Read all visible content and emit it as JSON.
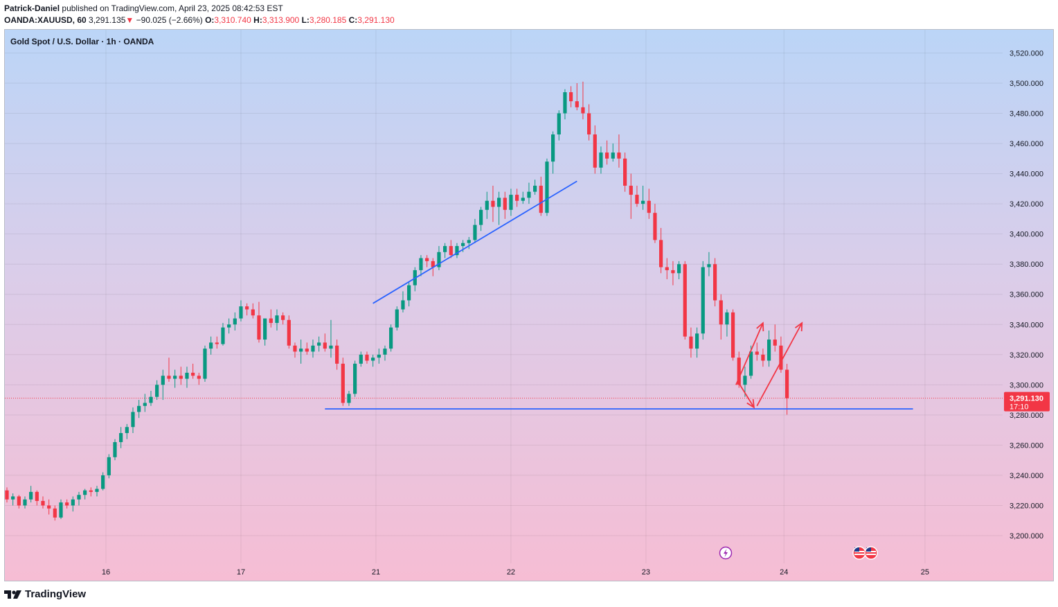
{
  "header": {
    "author": "Patrick-Daniel",
    "published": "published on TradingView.com, April 23, 2025 08:42:53 EST",
    "symbol": "OANDA:XAUUSD, 60",
    "last": "3,291.135",
    "change_arrow": "▼",
    "change": "−90.025 (−2.66%)",
    "o_label": "O:",
    "o": "3,310.740",
    "h_label": "H:",
    "h": "3,313.900",
    "l_label": "L:",
    "l": "3,280.185",
    "c_label": "C:",
    "c": "3,291.130"
  },
  "chart_title": "Gold Spot / U.S. Dollar · 1h · OANDA",
  "price_badge": {
    "price": "3,291.130",
    "countdown": "17:10"
  },
  "branding": {
    "name": "TradingView",
    "icon": "tradingview-logo-icon"
  },
  "colors": {
    "up": "#089981",
    "down": "#f23645",
    "line": "#2962ff",
    "arrow": "#f23645"
  },
  "icons": {
    "event_flash": "flash-event-icon",
    "flags": "us-flag-icon"
  },
  "chart_data": {
    "type": "candlestick",
    "title": "Gold Spot / U.S. Dollar · 1h · OANDA",
    "ylim": [
      3187,
      3530
    ],
    "yticks": [
      3200,
      3220,
      3240,
      3260,
      3280,
      3300,
      3320,
      3340,
      3360,
      3380,
      3400,
      3420,
      3440,
      3460,
      3480,
      3500,
      3520
    ],
    "ytick_labels": [
      "3,200.000",
      "3,220.000",
      "3,240.000",
      "3,260.000",
      "3,280.000",
      "3,300.000",
      "3,320.000",
      "3,340.000",
      "3,360.000",
      "3,380.000",
      "3,400.000",
      "3,420.000",
      "3,440.000",
      "3,460.000",
      "3,480.000",
      "3,500.000",
      "3,520.000"
    ],
    "xticks": [
      {
        "label": "16",
        "bar": 16.5
      },
      {
        "label": "17",
        "bar": 39
      },
      {
        "label": "21",
        "bar": 61.5
      },
      {
        "label": "22",
        "bar": 84
      },
      {
        "label": "23",
        "bar": 106.5
      },
      {
        "label": "24",
        "bar": 129.5
      },
      {
        "label": "25",
        "bar": 153
      }
    ],
    "bars_total": 175,
    "last_price": 3291.13,
    "candles": [
      [
        3230,
        3232,
        3222,
        3224
      ],
      [
        3224,
        3228,
        3220,
        3226
      ],
      [
        3226,
        3227,
        3218,
        3220
      ],
      [
        3220,
        3226,
        3218,
        3224
      ],
      [
        3224,
        3233,
        3222,
        3229
      ],
      [
        3229,
        3230,
        3220,
        3223
      ],
      [
        3223,
        3226,
        3218,
        3220
      ],
      [
        3220,
        3224,
        3214,
        3218
      ],
      [
        3218,
        3220,
        3210,
        3212
      ],
      [
        3212,
        3224,
        3211,
        3222
      ],
      [
        3222,
        3224,
        3218,
        3220
      ],
      [
        3220,
        3226,
        3216,
        3224
      ],
      [
        3224,
        3229,
        3220,
        3227
      ],
      [
        3227,
        3231,
        3224,
        3230
      ],
      [
        3230,
        3232,
        3226,
        3229
      ],
      [
        3229,
        3233,
        3226,
        3231
      ],
      [
        3231,
        3242,
        3230,
        3240
      ],
      [
        3240,
        3254,
        3238,
        3252
      ],
      [
        3252,
        3264,
        3250,
        3262
      ],
      [
        3262,
        3272,
        3258,
        3268
      ],
      [
        3268,
        3274,
        3264,
        3272
      ],
      [
        3272,
        3285,
        3268,
        3282
      ],
      [
        3282,
        3290,
        3278,
        3286
      ],
      [
        3286,
        3294,
        3282,
        3288
      ],
      [
        3288,
        3296,
        3286,
        3292
      ],
      [
        3292,
        3303,
        3290,
        3300
      ],
      [
        3300,
        3310,
        3290,
        3306
      ],
      [
        3306,
        3318,
        3302,
        3304
      ],
      [
        3304,
        3310,
        3298,
        3306
      ],
      [
        3306,
        3312,
        3300,
        3304
      ],
      [
        3304,
        3312,
        3298,
        3308
      ],
      [
        3308,
        3314,
        3304,
        3306
      ],
      [
        3306,
        3308,
        3300,
        3304
      ],
      [
        3304,
        3326,
        3302,
        3324
      ],
      [
        3324,
        3332,
        3320,
        3328
      ],
      [
        3328,
        3332,
        3324,
        3327
      ],
      [
        3327,
        3341,
        3326,
        3338
      ],
      [
        3338,
        3344,
        3334,
        3340
      ],
      [
        3340,
        3348,
        3336,
        3344
      ],
      [
        3344,
        3356,
        3342,
        3352
      ],
      [
        3352,
        3354,
        3346,
        3350
      ],
      [
        3350,
        3354,
        3344,
        3346
      ],
      [
        3346,
        3355,
        3328,
        3330
      ],
      [
        3330,
        3344,
        3326,
        3344
      ],
      [
        3344,
        3350,
        3338,
        3341
      ],
      [
        3341,
        3350,
        3336,
        3346
      ],
      [
        3346,
        3348,
        3340,
        3343
      ],
      [
        3343,
        3346,
        3324,
        3326
      ],
      [
        3326,
        3328,
        3318,
        3322
      ],
      [
        3322,
        3330,
        3314,
        3324
      ],
      [
        3324,
        3328,
        3320,
        3322
      ],
      [
        3322,
        3330,
        3318,
        3326
      ],
      [
        3326,
        3332,
        3322,
        3328
      ],
      [
        3328,
        3334,
        3322,
        3324
      ],
      [
        3324,
        3343,
        3318,
        3326
      ],
      [
        3326,
        3330,
        3310,
        3314
      ],
      [
        3314,
        3318,
        3286,
        3288
      ],
      [
        3288,
        3296,
        3286,
        3294
      ],
      [
        3294,
        3316,
        3292,
        3314
      ],
      [
        3314,
        3322,
        3312,
        3320
      ],
      [
        3320,
        3322,
        3314,
        3316
      ],
      [
        3316,
        3320,
        3312,
        3318
      ],
      [
        3318,
        3324,
        3314,
        3320
      ],
      [
        3320,
        3326,
        3316,
        3324
      ],
      [
        3324,
        3340,
        3322,
        3338
      ],
      [
        3338,
        3352,
        3336,
        3350
      ],
      [
        3350,
        3362,
        3348,
        3356
      ],
      [
        3356,
        3368,
        3352,
        3366
      ],
      [
        3366,
        3378,
        3362,
        3376
      ],
      [
        3376,
        3386,
        3372,
        3384
      ],
      [
        3384,
        3386,
        3378,
        3382
      ],
      [
        3382,
        3384,
        3372,
        3378
      ],
      [
        3378,
        3392,
        3376,
        3388
      ],
      [
        3388,
        3394,
        3384,
        3392
      ],
      [
        3392,
        3396,
        3384,
        3386
      ],
      [
        3386,
        3394,
        3384,
        3392
      ],
      [
        3392,
        3396,
        3388,
        3394
      ],
      [
        3394,
        3398,
        3390,
        3396
      ],
      [
        3396,
        3410,
        3394,
        3406
      ],
      [
        3406,
        3418,
        3402,
        3416
      ],
      [
        3416,
        3428,
        3410,
        3422
      ],
      [
        3422,
        3432,
        3408,
        3418
      ],
      [
        3418,
        3428,
        3406,
        3424
      ],
      [
        3424,
        3428,
        3410,
        3416
      ],
      [
        3416,
        3430,
        3412,
        3426
      ],
      [
        3426,
        3430,
        3418,
        3422
      ],
      [
        3422,
        3428,
        3420,
        3424
      ],
      [
        3424,
        3434,
        3420,
        3428
      ],
      [
        3428,
        3436,
        3426,
        3432
      ],
      [
        3432,
        3438,
        3412,
        3414
      ],
      [
        3414,
        3450,
        3412,
        3448
      ],
      [
        3448,
        3468,
        3440,
        3466
      ],
      [
        3466,
        3482,
        3462,
        3480
      ],
      [
        3480,
        3496,
        3476,
        3494
      ],
      [
        3494,
        3498,
        3484,
        3488
      ],
      [
        3488,
        3500,
        3482,
        3484
      ],
      [
        3484,
        3501,
        3476,
        3480
      ],
      [
        3480,
        3486,
        3462,
        3466
      ],
      [
        3466,
        3472,
        3440,
        3444
      ],
      [
        3444,
        3458,
        3440,
        3454
      ],
      [
        3454,
        3462,
        3446,
        3450
      ],
      [
        3450,
        3460,
        3448,
        3454
      ],
      [
        3454,
        3466,
        3444,
        3450
      ],
      [
        3450,
        3454,
        3428,
        3432
      ],
      [
        3432,
        3440,
        3410,
        3426
      ],
      [
        3426,
        3432,
        3418,
        3420
      ],
      [
        3420,
        3432,
        3416,
        3422
      ],
      [
        3422,
        3430,
        3410,
        3414
      ],
      [
        3414,
        3420,
        3394,
        3396
      ],
      [
        3396,
        3404,
        3374,
        3378
      ],
      [
        3378,
        3384,
        3370,
        3376
      ],
      [
        3376,
        3382,
        3366,
        3374
      ],
      [
        3374,
        3382,
        3370,
        3380
      ],
      [
        3380,
        3382,
        3330,
        3332
      ],
      [
        3332,
        3338,
        3318,
        3324
      ],
      [
        3324,
        3338,
        3318,
        3334
      ],
      [
        3334,
        3382,
        3330,
        3378
      ],
      [
        3378,
        3388,
        3372,
        3380
      ],
      [
        3380,
        3384,
        3352,
        3356
      ],
      [
        3356,
        3360,
        3330,
        3340
      ],
      [
        3340,
        3350,
        3332,
        3348
      ],
      [
        3348,
        3350,
        3316,
        3318
      ],
      [
        3318,
        3322,
        3298,
        3300
      ],
      [
        3300,
        3312,
        3292,
        3306
      ],
      [
        3306,
        3326,
        3304,
        3322
      ],
      [
        3322,
        3328,
        3316,
        3320
      ],
      [
        3320,
        3324,
        3312,
        3316
      ],
      [
        3316,
        3336,
        3312,
        3330
      ],
      [
        3330,
        3340,
        3322,
        3326
      ],
      [
        3326,
        3332,
        3308,
        3310
      ],
      [
        3310,
        3313.9,
        3280.185,
        3291.13
      ]
    ]
  }
}
